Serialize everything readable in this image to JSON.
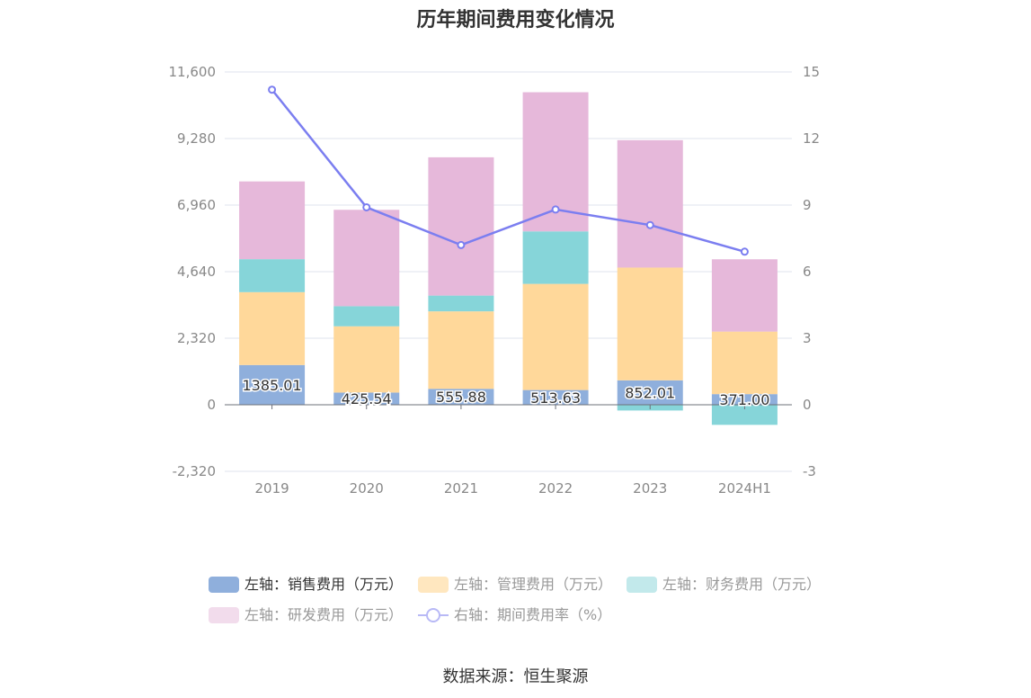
{
  "title": "历年期间费用变化情况",
  "source_text": "数据来源：恒生聚源",
  "colors": {
    "sales": "#8fafdc",
    "admin": "#ffd89a",
    "finance": "#86d5d9",
    "rd": "#e6b8da",
    "rate": "#7b7ef0",
    "grid": "#dfe3ec",
    "axis_text": "#888888"
  },
  "chart_data": {
    "type": "bar",
    "stacked": true,
    "categories": [
      "2019",
      "2020",
      "2021",
      "2022",
      "2023",
      "2024H1"
    ],
    "y_left": {
      "min": -2320,
      "max": 11600,
      "ticks": [
        "11,600",
        "9,280",
        "6,960",
        "4,640",
        "2,320",
        "0",
        "-2,320"
      ],
      "tick_values": [
        11600,
        9280,
        6960,
        4640,
        2320,
        0,
        -2320
      ]
    },
    "y_right": {
      "min": -3,
      "max": 15,
      "ticks": [
        "15",
        "12",
        "9",
        "6",
        "3",
        "0",
        "-3"
      ],
      "tick_values": [
        15,
        12,
        9,
        6,
        3,
        0,
        -3
      ]
    },
    "series": [
      {
        "name": "左轴：销售费用（万元）",
        "key": "sales",
        "axis": "left",
        "values": [
          1385.01,
          425.54,
          555.88,
          513.63,
          852.01,
          371.0
        ],
        "labels": [
          "1385.01",
          "425.54",
          "555.88",
          "513.63",
          "852.01",
          "371.00"
        ]
      },
      {
        "name": "左轴：管理费用（万元）",
        "key": "admin",
        "axis": "left",
        "values": [
          2540,
          2310,
          2700,
          3700,
          3930,
          2180
        ]
      },
      {
        "name": "左轴：财务费用（万元）",
        "key": "finance",
        "axis": "left",
        "values": [
          1150,
          700,
          550,
          1830,
          -200,
          -700
        ]
      },
      {
        "name": "左轴：研发费用（万元）",
        "key": "rd",
        "axis": "left",
        "values": [
          2710,
          3360,
          4820,
          4850,
          4440,
          2520
        ]
      },
      {
        "name": "右轴：期间费用率（%）",
        "key": "rate",
        "axis": "right",
        "type": "line",
        "values": [
          14.2,
          8.9,
          7.2,
          8.8,
          8.1,
          6.9
        ]
      }
    ],
    "legend_position": "bottom",
    "grid": true
  }
}
